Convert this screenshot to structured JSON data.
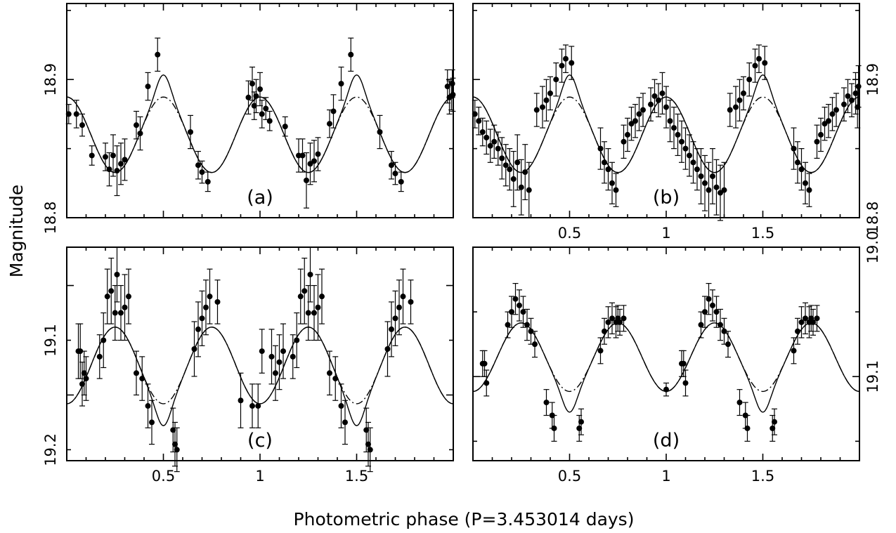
{
  "figure": {
    "xlabel": "Photometric phase (P=3.453014 days)",
    "ylabel": "Magnitude"
  },
  "chart_data": [
    {
      "type": "scatter",
      "panel_label": "(a)",
      "xlim": [
        0,
        2
      ],
      "ylim": [
        18.8,
        18.955
      ],
      "y_inverted": false,
      "ytick_values": [
        18.8,
        18.85,
        18.9,
        18.95
      ],
      "ytick_labels_left": [
        "18.8",
        "",
        "18.9",
        ""
      ],
      "ytick_labels_right": [],
      "xtick_values": [
        0.5,
        1,
        1.5
      ],
      "xtick_labels": [],
      "model": {
        "mean": 18.86,
        "amp": 0.0273,
        "dip_depth": 0.016,
        "dip_width": 0.05,
        "dip_center": 0.5
      },
      "series": [
        {
          "x": [
            0.01,
            0.05,
            0.08,
            0.13,
            0.2,
            0.22,
            0.24,
            0.26,
            0.28,
            0.3,
            0.36,
            0.38,
            0.42,
            0.47,
            0.64,
            0.68,
            0.7,
            0.73,
            0.94,
            0.96,
            0.97,
            0.98,
            1.0,
            1.01,
            1.03,
            1.05,
            1.13,
            1.2,
            1.22,
            1.24,
            1.26,
            1.28,
            1.3,
            1.36,
            1.38,
            1.42,
            1.47,
            1.62,
            1.68,
            1.7,
            1.73,
            1.97,
            1.98,
            1.99,
            1.995,
            1.998
          ],
          "y": [
            18.875,
            18.875,
            18.867,
            18.845,
            18.844,
            18.835,
            18.845,
            18.834,
            18.839,
            18.842,
            18.867,
            18.861,
            18.895,
            18.918,
            18.862,
            18.838,
            18.833,
            18.826,
            18.887,
            18.897,
            18.881,
            18.888,
            18.893,
            18.875,
            18.879,
            18.87,
            18.866,
            18.845,
            18.845,
            18.827,
            18.839,
            18.841,
            18.846,
            18.868,
            18.877,
            18.897,
            18.918,
            18.862,
            18.838,
            18.832,
            18.826,
            18.895,
            18.887,
            18.888,
            18.897,
            18.889
          ],
          "yerr": [
            0.007,
            0.01,
            0.008,
            0.007,
            0.01,
            0.012,
            0.015,
            0.018,
            0.015,
            0.015,
            0.01,
            0.012,
            0.01,
            0.012,
            0.012,
            0.01,
            0.008,
            0.007,
            0.012,
            0.012,
            0.01,
            0.012,
            0.012,
            0.01,
            0.008,
            0.007,
            0.007,
            0.012,
            0.012,
            0.02,
            0.015,
            0.015,
            0.012,
            0.01,
            0.012,
            0.012,
            0.012,
            0.012,
            0.01,
            0.008,
            0.007,
            0.012,
            0.012,
            0.01,
            0.01,
            0.012
          ]
        }
      ]
    },
    {
      "type": "scatter",
      "panel_label": "(b)",
      "xlim": [
        0,
        2
      ],
      "ylim": [
        18.8,
        18.955
      ],
      "y_inverted": false,
      "ytick_values": [
        18.8,
        18.85,
        18.9,
        18.95
      ],
      "ytick_labels_left": [],
      "ytick_labels_right": [
        "18.8",
        "",
        "18.9",
        ""
      ],
      "xtick_values": [
        0.5,
        1,
        1.5
      ],
      "xtick_labels": [
        "0.5",
        "1",
        "1.5"
      ],
      "model": {
        "mean": 18.86,
        "amp": 0.0273,
        "dip_depth": 0.016,
        "dip_width": 0.05,
        "dip_center": 0.5
      },
      "series": [
        {
          "x": [
            0.01,
            0.03,
            0.05,
            0.07,
            0.09,
            0.11,
            0.13,
            0.15,
            0.17,
            0.19,
            0.21,
            0.23,
            0.25,
            0.27,
            0.29,
            0.33,
            0.36,
            0.38,
            0.4,
            0.43,
            0.46,
            0.48,
            0.51,
            0.66,
            0.68,
            0.7,
            0.72,
            0.74,
            0.78,
            0.8,
            0.82,
            0.84,
            0.86,
            0.88,
            0.92,
            0.94,
            0.96,
            0.98,
            1.0,
            1.02,
            1.04,
            1.06,
            1.08,
            1.1,
            1.12,
            1.14,
            1.16,
            1.18,
            1.2,
            1.22,
            1.24,
            1.26,
            1.28,
            1.3,
            1.33,
            1.36,
            1.38,
            1.4,
            1.43,
            1.46,
            1.48,
            1.51,
            1.66,
            1.68,
            1.7,
            1.72,
            1.74,
            1.78,
            1.8,
            1.82,
            1.84,
            1.86,
            1.88,
            1.92,
            1.94,
            1.96,
            1.98,
            1.99,
            1.995
          ],
          "y": [
            18.875,
            18.87,
            18.862,
            18.858,
            18.852,
            18.855,
            18.85,
            18.843,
            18.838,
            18.835,
            18.828,
            18.84,
            18.822,
            18.833,
            18.82,
            18.878,
            18.88,
            18.885,
            18.89,
            18.9,
            18.91,
            18.915,
            18.912,
            18.85,
            18.84,
            18.835,
            18.825,
            18.82,
            18.855,
            18.86,
            18.868,
            18.87,
            18.875,
            18.878,
            18.882,
            18.888,
            18.885,
            18.89,
            18.88,
            18.87,
            18.865,
            18.86,
            18.855,
            18.85,
            18.845,
            18.84,
            18.835,
            18.83,
            18.825,
            18.82,
            18.83,
            18.822,
            18.818,
            18.82,
            18.878,
            18.88,
            18.885,
            18.89,
            18.9,
            18.91,
            18.915,
            18.912,
            18.85,
            18.84,
            18.835,
            18.825,
            18.82,
            18.855,
            18.86,
            18.868,
            18.87,
            18.875,
            18.878,
            18.882,
            18.888,
            18.885,
            18.89,
            18.88,
            18.895
          ],
          "yerr": [
            0.01,
            0.01,
            0.01,
            0.012,
            0.012,
            0.012,
            0.012,
            0.015,
            0.015,
            0.015,
            0.02,
            0.02,
            0.02,
            0.02,
            0.02,
            0.012,
            0.015,
            0.015,
            0.012,
            0.012,
            0.012,
            0.01,
            0.012,
            0.015,
            0.015,
            0.015,
            0.015,
            0.012,
            0.012,
            0.012,
            0.012,
            0.012,
            0.012,
            0.012,
            0.012,
            0.012,
            0.012,
            0.015,
            0.015,
            0.015,
            0.015,
            0.015,
            0.015,
            0.015,
            0.015,
            0.015,
            0.015,
            0.02,
            0.02,
            0.02,
            0.02,
            0.02,
            0.02,
            0.02,
            0.012,
            0.015,
            0.015,
            0.012,
            0.012,
            0.012,
            0.01,
            0.012,
            0.015,
            0.015,
            0.015,
            0.015,
            0.012,
            0.012,
            0.012,
            0.012,
            0.012,
            0.012,
            0.012,
            0.012,
            0.012,
            0.012,
            0.015,
            0.015,
            0.015
          ]
        }
      ]
    },
    {
      "type": "scatter",
      "panel_label": "(c)",
      "xlim": [
        0,
        2
      ],
      "ylim": [
        19.015,
        19.21
      ],
      "y_inverted": true,
      "ytick_values": [
        19.05,
        19.1,
        19.15,
        19.2
      ],
      "ytick_labels_left": [
        "",
        "19.1",
        "",
        "19.2"
      ],
      "ytick_labels_right": [],
      "xtick_values": [
        0.5,
        1,
        1.5
      ],
      "xtick_labels": [
        "0.5",
        "1",
        "1.5"
      ],
      "model": {
        "mean": 19.123,
        "amp": 0.035,
        "dip_depth": 0.02,
        "dip_width": 0.05,
        "dip_center": 0.5
      },
      "series": [
        {
          "x": [
            0.06,
            0.07,
            0.08,
            0.09,
            0.1,
            0.17,
            0.19,
            0.21,
            0.23,
            0.25,
            0.26,
            0.28,
            0.3,
            0.32,
            0.36,
            0.39,
            0.42,
            0.44,
            0.55,
            0.56,
            0.57,
            0.66,
            0.68,
            0.7,
            0.72,
            0.74,
            0.78,
            0.9,
            0.96,
            0.99,
            1.01,
            1.06,
            1.08,
            1.1,
            1.12,
            1.17,
            1.19,
            1.21,
            1.23,
            1.25,
            1.26,
            1.28,
            1.3,
            1.32,
            1.36,
            1.39,
            1.42,
            1.44,
            1.55,
            1.56,
            1.57,
            1.66,
            1.68,
            1.7,
            1.72,
            1.74,
            1.78
          ],
          "y": [
            19.11,
            19.11,
            19.14,
            19.13,
            19.135,
            19.115,
            19.1,
            19.06,
            19.055,
            19.075,
            19.04,
            19.075,
            19.07,
            19.06,
            19.13,
            19.135,
            19.16,
            19.175,
            19.182,
            19.195,
            19.2,
            19.108,
            19.09,
            19.08,
            19.07,
            19.06,
            19.065,
            19.155,
            19.16,
            19.16,
            19.11,
            19.115,
            19.13,
            19.12,
            19.11,
            19.115,
            19.1,
            19.06,
            19.055,
            19.075,
            19.04,
            19.075,
            19.07,
            19.06,
            19.13,
            19.135,
            19.16,
            19.175,
            19.182,
            19.195,
            19.2,
            19.108,
            19.09,
            19.08,
            19.07,
            19.06,
            19.065
          ],
          "yerr": [
            0.025,
            0.025,
            0.02,
            0.02,
            0.02,
            0.02,
            0.025,
            0.025,
            0.03,
            0.025,
            0.025,
            0.025,
            0.03,
            0.025,
            0.02,
            0.02,
            0.02,
            0.02,
            0.02,
            0.02,
            0.02,
            0.025,
            0.025,
            0.025,
            0.025,
            0.025,
            0.02,
            0.025,
            0.02,
            0.02,
            0.02,
            0.025,
            0.025,
            0.025,
            0.025,
            0.02,
            0.025,
            0.025,
            0.03,
            0.025,
            0.025,
            0.025,
            0.03,
            0.025,
            0.02,
            0.02,
            0.02,
            0.02,
            0.02,
            0.02,
            0.02,
            0.025,
            0.025,
            0.025,
            0.025,
            0.025,
            0.02
          ]
        }
      ]
    },
    {
      "type": "scatter",
      "panel_label": "(d)",
      "xlim": [
        0,
        2
      ],
      "ylim": [
        19.0,
        19.165
      ],
      "y_inverted": true,
      "ytick_values": [
        19.0,
        19.05,
        19.1,
        19.15
      ],
      "ytick_labels_left": [],
      "ytick_labels_right": [
        "19.0",
        "",
        "19.1",
        ""
      ],
      "xtick_values": [
        0.5,
        1,
        1.5
      ],
      "xtick_labels": [
        "0.5",
        "1",
        "1.5"
      ],
      "model": {
        "mean": 19.085,
        "amp": 0.0265,
        "dip_depth": 0.016,
        "dip_width": 0.05,
        "dip_center": 0.5
      },
      "series": [
        {
          "x": [
            0.05,
            0.06,
            0.07,
            0.18,
            0.2,
            0.22,
            0.24,
            0.26,
            0.28,
            0.3,
            0.32,
            0.38,
            0.41,
            0.42,
            0.55,
            0.56,
            0.66,
            0.68,
            0.7,
            0.72,
            0.74,
            0.75,
            0.76,
            0.78,
            1.0,
            1.08,
            1.09,
            1.1,
            1.18,
            1.2,
            1.22,
            1.24,
            1.26,
            1.28,
            1.3,
            1.32,
            1.38,
            1.41,
            1.42,
            1.55,
            1.56,
            1.66,
            1.68,
            1.7,
            1.72,
            1.74,
            1.75,
            1.76,
            1.78
          ],
          "y": [
            19.09,
            19.09,
            19.105,
            19.06,
            19.05,
            19.04,
            19.045,
            19.05,
            19.06,
            19.065,
            19.075,
            19.12,
            19.13,
            19.14,
            19.14,
            19.135,
            19.08,
            19.065,
            19.058,
            19.055,
            19.058,
            19.055,
            19.058,
            19.055,
            19.11,
            19.09,
            19.09,
            19.105,
            19.06,
            19.05,
            19.04,
            19.045,
            19.05,
            19.06,
            19.065,
            19.075,
            19.12,
            19.13,
            19.14,
            19.14,
            19.135,
            19.08,
            19.065,
            19.058,
            19.055,
            19.058,
            19.055,
            19.058,
            19.055
          ],
          "yerr": [
            0.01,
            0.01,
            0.01,
            0.01,
            0.012,
            0.012,
            0.012,
            0.012,
            0.012,
            0.01,
            0.01,
            0.01,
            0.01,
            0.01,
            0.01,
            0.01,
            0.01,
            0.01,
            0.012,
            0.012,
            0.012,
            0.01,
            0.01,
            0.01,
            0.005,
            0.01,
            0.01,
            0.01,
            0.01,
            0.012,
            0.012,
            0.012,
            0.012,
            0.012,
            0.01,
            0.01,
            0.01,
            0.01,
            0.01,
            0.01,
            0.01,
            0.01,
            0.01,
            0.012,
            0.012,
            0.012,
            0.01,
            0.01,
            0.01
          ]
        }
      ]
    }
  ]
}
